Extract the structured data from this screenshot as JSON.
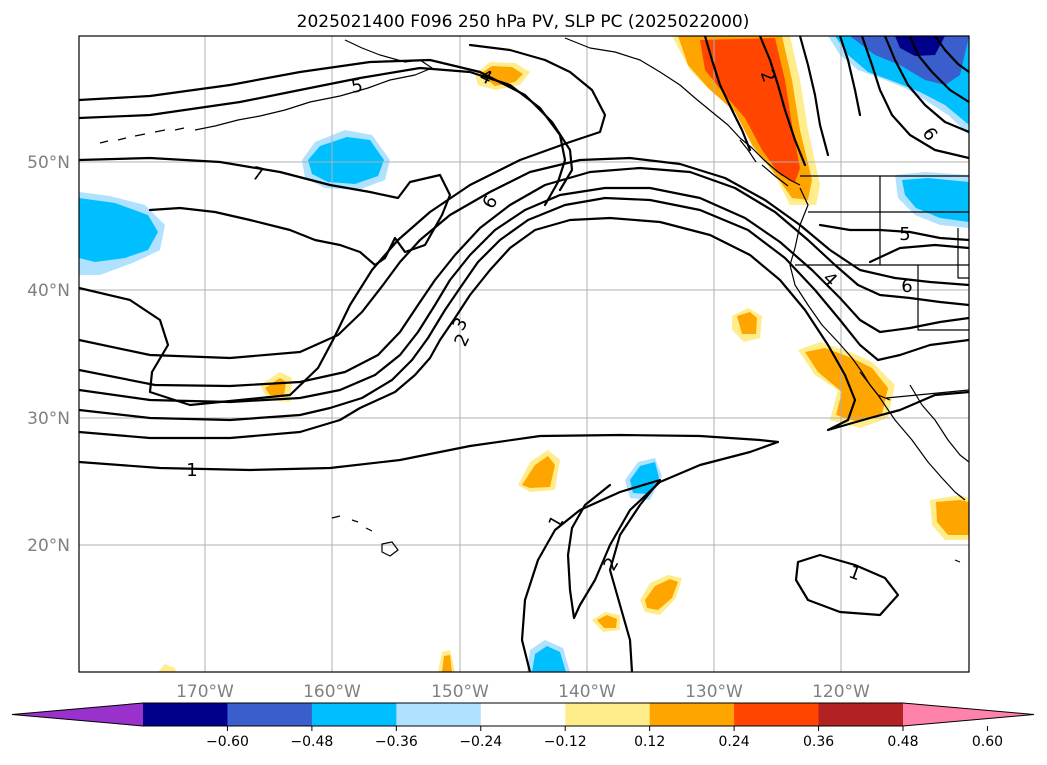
{
  "title": "2025021400 F096 250 hPa PV, SLP PC (2025022000)",
  "lat_labels": [
    "50°N",
    "40°N",
    "30°N",
    "20°N"
  ],
  "lon_labels": [
    "170°W",
    "160°W",
    "150°W",
    "140°W",
    "130°W",
    "120°W"
  ],
  "contour_labels": [
    "1",
    "1",
    "1",
    "2",
    "2",
    "2",
    "3",
    "4",
    "4",
    "5",
    "5",
    "6",
    "6",
    "6",
    "7"
  ],
  "colorbar": {
    "ticks": [
      "−0.60",
      "−0.48",
      "−0.36",
      "−0.24",
      "−0.12",
      "0.12",
      "0.24",
      "0.36",
      "0.48",
      "0.60"
    ],
    "colors": [
      "#9932cc",
      "#00008b",
      "#3a5fcd",
      "#00bfff",
      "#b0e2ff",
      "#ffffff",
      "#ffec8b",
      "#ffa500",
      "#ff4500",
      "#b22222",
      "#ff82ab"
    ]
  },
  "fill_colors": {
    "cyan": "#00bfff",
    "light_blue": "#b0e2ff",
    "royal_blue": "#3a5fcd",
    "navy": "#00008b",
    "yellow": "#ffec8b",
    "orange": "#ffa500",
    "red_orange": "#ff4500"
  }
}
